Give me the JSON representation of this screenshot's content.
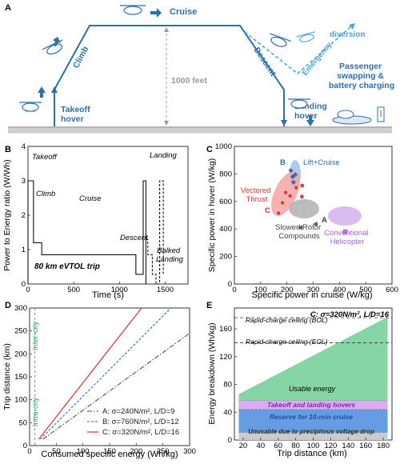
{
  "panel_a": {
    "label": "A",
    "phases": {
      "takeoff_hover": [
        "Takeoff",
        "hover"
      ],
      "climb": "Climb",
      "cruise": "Cruise",
      "descent": "Descent",
      "landing_hover": [
        "Landing",
        "hover"
      ],
      "emergency": "Emergency",
      "diversion": "diversion",
      "passenger": [
        "Passenger",
        "swapping &",
        "battery charging"
      ]
    },
    "altitude": "1000 feet",
    "colors": {
      "primary": "#2e6fb0",
      "emergency": "#4aa3df",
      "ground": "#999999"
    }
  },
  "panel_b": {
    "label": "B",
    "ylabel": "Power to Energy ratio (W/Wh)",
    "xlabel": "Time (s)",
    "subtitle": "80 km eVTOL trip",
    "annotations": {
      "takeoff": "Takeoff",
      "climb": "Climb",
      "cruise": "Cruise",
      "descent": "Descent",
      "landing": "Landing",
      "balked": [
        "Balked",
        "Landing"
      ]
    },
    "xticks": [
      "0",
      "500",
      "1000",
      "1500"
    ],
    "yticks": [
      "0",
      "1",
      "2",
      "3",
      "4"
    ]
  },
  "panel_c": {
    "label": "C",
    "xlabel": "Specific power in cruise (W/kg)",
    "ylabel": "Specific power in hover (W/kg)",
    "xticks": [
      "0",
      "100",
      "200",
      "300",
      "400",
      "500",
      "600"
    ],
    "yticks": [
      "0",
      "200",
      "400",
      "600",
      "800",
      "1000"
    ],
    "groups": {
      "lift_cruise": "Lift+Cruise",
      "vectored": [
        "Vectored",
        "Thrust"
      ],
      "slowed": [
        "Slowed Rotor",
        "Compounds"
      ],
      "heli": [
        "Conventional",
        "Helicopter"
      ]
    },
    "markers": {
      "a": "A",
      "b": "B",
      "c": "C"
    }
  },
  "panel_d": {
    "label": "D",
    "xlabel": "Consumed specific energy (Wh/kg)",
    "ylabel": "Trip distance (km)",
    "xticks": [
      "0",
      "50",
      "100",
      "150",
      "200",
      "250",
      "300"
    ],
    "yticks": [
      "0",
      "50",
      "100",
      "150",
      "200",
      "250",
      "300"
    ],
    "intercity": "Inter-city",
    "intracity": "Intra-city",
    "legend": [
      "A: σ=240N/m², L/D=9",
      "B: σ=760N/m², L/D=12",
      "C: σ=320N/m², L/D=16"
    ]
  },
  "panel_e": {
    "label": "E",
    "xlabel": "Trip distance (km)",
    "ylabel": "Energy breakdown (Wh/kg)",
    "title": "C: σ=320N/m², L/D=16",
    "xticks": [
      "20",
      "40",
      "60",
      "80",
      "100",
      "120",
      "140",
      "160",
      "180"
    ],
    "yticks": [
      "0",
      "40",
      "80",
      "120",
      "160"
    ],
    "bands": {
      "bol": "Rapid-charge ceiling (BOL)",
      "eol": "Rapid-charge ceiling (EOL)",
      "usable": "Usable energy",
      "hover": "Takeoff and landing hovers",
      "reserve": "Reserve for 10-min cruise",
      "unusable": "Unusable due to precipitous voltage drop"
    }
  },
  "chart_data": [
    {
      "type": "line",
      "panel": "B",
      "xlabel": "Time (s)",
      "ylabel": "Power to Energy ratio (W/Wh)",
      "xlim": [
        0,
        1750
      ],
      "ylim": [
        0,
        4
      ],
      "series": [
        {
          "x": [
            0,
            0,
            60,
            60,
            150,
            150,
            1180,
            1180,
            1260,
            1260,
            1290,
            1290
          ],
          "y": [
            0,
            3.0,
            3.0,
            1.2,
            1.2,
            0.85,
            0.85,
            0.28,
            0.28,
            3.0,
            3.0,
            0
          ]
        },
        {
          "x": [
            1290,
            1310,
            1310,
            1360,
            1360,
            1400,
            1400,
            1440,
            1440,
            1480,
            1480
          ],
          "y": [
            1.3,
            1.3,
            0.85,
            0.85,
            0.28,
            0.28,
            0,
            0,
            3.0,
            3.0,
            0.28
          ]
        }
      ]
    },
    {
      "type": "scatter",
      "panel": "C",
      "xlabel": "Specific power in cruise (W/kg)",
      "ylabel": "Specific power in hover (W/kg)",
      "xlim": [
        0,
        600
      ],
      "ylim": [
        0,
        1000
      ],
      "series": [
        {
          "x": [
            215,
            222,
            225,
            232
          ],
          "y": [
            825,
            780,
            740,
            795
          ]
        },
        {
          "x": [
            168,
            183,
            195,
            212,
            235,
            257,
            258
          ],
          "y": [
            515,
            590,
            665,
            640,
            700,
            635,
            715
          ]
        },
        {
          "x": [
            250,
            307
          ],
          "y": [
            410,
            435
          ]
        },
        {
          "x": [
            422
          ],
          "y": [
            380
          ]
        }
      ]
    },
    {
      "type": "line",
      "panel": "D",
      "xlabel": "Consumed specific energy (Wh/kg)",
      "ylabel": "Trip distance (km)",
      "xlim": [
        0,
        300
      ],
      "ylim": [
        0,
        300
      ],
      "series": [
        {
          "name": "A: σ=240N/m², L/D=9",
          "x": [
            25,
            300
          ],
          "y": [
            14,
            245
          ]
        },
        {
          "name": "B: σ=760N/m², L/D=12",
          "x": [
            20,
            265
          ],
          "y": [
            14,
            300
          ]
        },
        {
          "name": "C: σ=320N/m², L/D=16",
          "x": [
            17,
            210
          ],
          "y": [
            14,
            300
          ]
        }
      ]
    },
    {
      "type": "area",
      "panel": "E",
      "title": "C: σ=320N/m², L/D=16",
      "xlabel": "Trip distance (km)",
      "ylabel": "Energy breakdown (Wh/kg)",
      "xlim": [
        10,
        190
      ],
      "ylim": [
        0,
        190
      ],
      "series": [
        {
          "name": "Unusable due to precipitous voltage drop",
          "x": [
            15,
            185
          ],
          "y": [
            11,
            11
          ]
        },
        {
          "name": "Reserve for 10-min cruise",
          "x": [
            15,
            185
          ],
          "y": [
            33,
            33
          ]
        },
        {
          "name": "Takeoff and landing hovers",
          "x": [
            15,
            185
          ],
          "y": [
            13,
            13
          ]
        },
        {
          "name": "Usable energy",
          "x": [
            15,
            185
          ],
          "y": [
            9,
            120
          ]
        }
      ],
      "references": [
        {
          "name": "Rapid-charge ceiling (BOL)",
          "y": 176
        },
        {
          "name": "Rapid-charge ceiling (EOL)",
          "y": 140
        }
      ]
    }
  ]
}
